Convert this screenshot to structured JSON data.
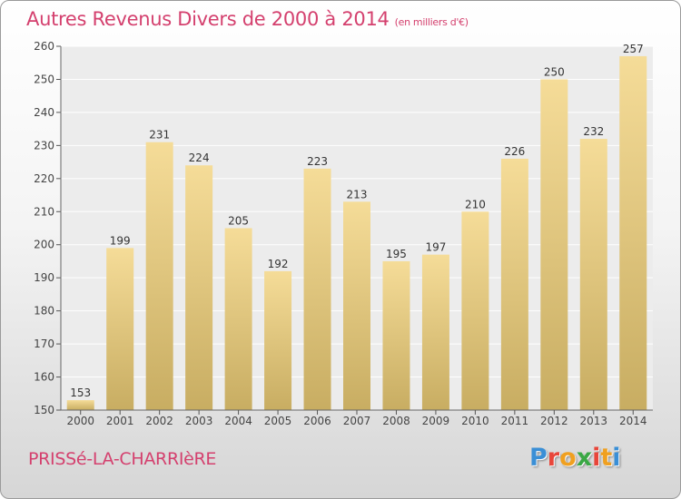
{
  "title": "Autres Revenus Divers de 2000 à 2014",
  "unit": "(en milliers d'€)",
  "commune": "PRISSé-LA-CHARRIèRE",
  "logo": {
    "letters": [
      "P",
      "r",
      "o",
      "x",
      "i",
      "t",
      "i"
    ],
    "colors": [
      "#3a8fd6",
      "#e8463a",
      "#f0a020",
      "#3aa845",
      "#e8463a",
      "#f0a020",
      "#3a8fd6"
    ]
  },
  "colors": {
    "title": "#d4406e",
    "bar_top": "#f5dc98",
    "bar_bottom": "#c8ad62",
    "plot_bg": "#ececec",
    "grid": "#ffffff"
  },
  "chart_data": {
    "type": "bar",
    "categories": [
      "2000",
      "2001",
      "2002",
      "2003",
      "2004",
      "2005",
      "2006",
      "2007",
      "2008",
      "2009",
      "2010",
      "2011",
      "2012",
      "2013",
      "2014"
    ],
    "values": [
      153,
      199,
      231,
      224,
      205,
      192,
      223,
      213,
      195,
      197,
      210,
      226,
      250,
      232,
      257
    ],
    "ylim": [
      150,
      260
    ],
    "yticks": [
      150,
      160,
      170,
      180,
      190,
      200,
      210,
      220,
      230,
      240,
      250,
      260
    ],
    "grid": true
  }
}
